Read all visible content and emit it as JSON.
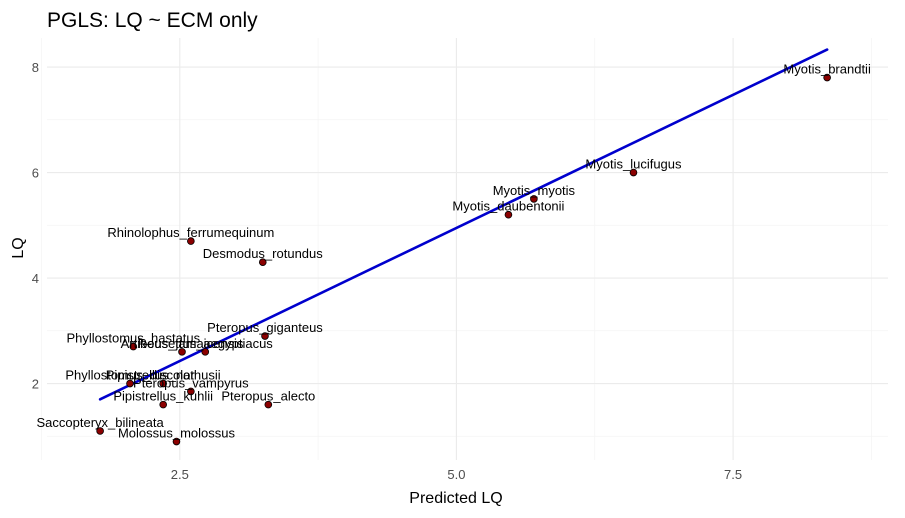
{
  "chart_data": {
    "type": "scatter",
    "title": "PGLS: LQ ~ ECM only",
    "xlabel": "Predicted LQ",
    "ylabel": "LQ",
    "xlim": [
      1.3,
      8.9
    ],
    "ylim": [
      0.55,
      8.55
    ],
    "x_major_ticks": [
      2.5,
      5.0,
      7.5
    ],
    "x_tick_labels": [
      "2.5",
      "5.0",
      "7.5"
    ],
    "x_minor_ticks": [
      1.25,
      3.75,
      6.25,
      8.75
    ],
    "y_major_ticks": [
      2,
      4,
      6,
      8
    ],
    "y_tick_labels": [
      "2",
      "4",
      "6",
      "8"
    ],
    "y_minor_ticks": [
      1,
      3,
      5,
      7
    ],
    "point_color": "#8b0000",
    "line_color": "#0000cd",
    "fit_line": {
      "x": [
        1.78,
        8.35
      ],
      "y": [
        1.7,
        8.33
      ]
    },
    "points": [
      {
        "label": "Myotis_brandtii",
        "x": 8.35,
        "y": 7.8
      },
      {
        "label": "Myotis_lucifugus",
        "x": 6.6,
        "y": 6.0
      },
      {
        "label": "Myotis_myotis",
        "x": 5.7,
        "y": 5.5
      },
      {
        "label": "Myotis_daubentonii",
        "x": 5.47,
        "y": 5.2
      },
      {
        "label": "Rhinolophus_ferrumequinum",
        "x": 2.6,
        "y": 4.7
      },
      {
        "label": "Desmodus_rotundus",
        "x": 3.25,
        "y": 4.3
      },
      {
        "label": "Pteropus_giganteus",
        "x": 3.27,
        "y": 2.9
      },
      {
        "label": "Phyllostomus_hastatus",
        "x": 2.08,
        "y": 2.7
      },
      {
        "label": "Artibeus_jamaicensis",
        "x": 2.52,
        "y": 2.6
      },
      {
        "label": "Rousettus_aegyptiacus",
        "x": 2.73,
        "y": 2.6
      },
      {
        "label": "Phyllostomus_discolor",
        "x": 2.05,
        "y": 2.0
      },
      {
        "label": "Pipistrellus_nathusii",
        "x": 2.35,
        "y": 2.0
      },
      {
        "label": "Pteropus_vampyrus",
        "x": 2.6,
        "y": 1.85
      },
      {
        "label": "Pipistrellus_kuhlii",
        "x": 2.35,
        "y": 1.6
      },
      {
        "label": "Pteropus_alecto",
        "x": 3.3,
        "y": 1.6
      },
      {
        "label": "Saccopteryx_bilineata",
        "x": 1.78,
        "y": 1.1
      },
      {
        "label": "Molossus_molossus",
        "x": 2.47,
        "y": 0.9
      }
    ]
  }
}
